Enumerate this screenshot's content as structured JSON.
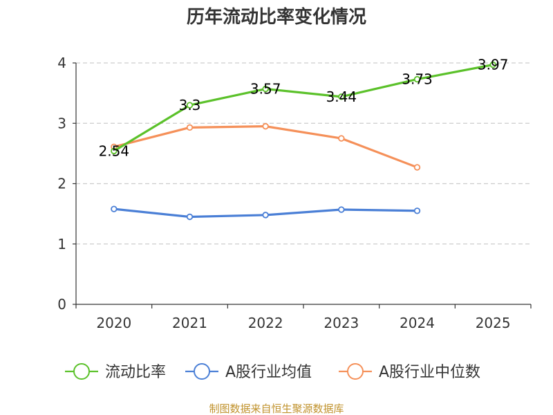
{
  "chart_data": {
    "type": "line",
    "title": "历年流动比率变化情况",
    "categories": [
      "2020",
      "2021",
      "2022",
      "2023",
      "2024",
      "2025"
    ],
    "ylim": [
      0,
      4
    ],
    "yticks": [
      "0",
      "1",
      "2",
      "3",
      "4"
    ],
    "grid": true,
    "legend_position": "bottom",
    "series": [
      {
        "name": "流动比率",
        "color": "#5bc12a",
        "values": [
          2.54,
          3.3,
          3.57,
          3.44,
          3.73,
          3.97
        ],
        "labels": [
          "2.54",
          "3.3",
          "3.57",
          "3.44",
          "3.73",
          "3.97"
        ]
      },
      {
        "name": "A股行业均值",
        "color": "#4a7fd6",
        "values": [
          1.58,
          1.45,
          1.48,
          1.57,
          1.55,
          null
        ]
      },
      {
        "name": "A股行业中位数",
        "color": "#f59059",
        "values": [
          2.61,
          2.93,
          2.95,
          2.75,
          2.27,
          null
        ]
      }
    ],
    "source": "制图数据来自恒生聚源数据库"
  }
}
